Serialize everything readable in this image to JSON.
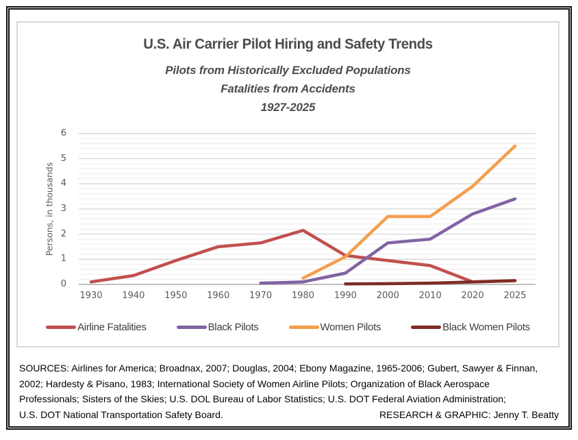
{
  "header": {
    "title": "U.S. Air Carrier Pilot Hiring and Safety Trends",
    "subtitle_line1": "Pilots from Historically Excluded Populations",
    "subtitle_line2": "Fatalities from Accidents",
    "subtitle_line3": "1927-2025"
  },
  "chart_data": {
    "type": "line",
    "title": "U.S. Air Carrier Pilot Hiring and Safety Trends",
    "subtitle": "Pilots from Historically Excluded Populations; Fatalities from Accidents; 1927-2025",
    "categories": [
      "1930",
      "1940",
      "1950",
      "1960",
      "1970",
      "1980",
      "1990",
      "2000",
      "2010",
      "2020",
      "2025"
    ],
    "series": [
      {
        "name": "Airline Fatalities",
        "color": "#C0504D",
        "values": [
          0.1,
          0.35,
          0.95,
          1.5,
          1.65,
          2.15,
          1.15,
          0.95,
          0.75,
          0.1,
          0.15
        ]
      },
      {
        "name": "Black Pilots",
        "color": "#8064A2",
        "values": [
          null,
          null,
          null,
          null,
          0.05,
          0.1,
          0.45,
          1.65,
          1.8,
          2.8,
          3.4
        ]
      },
      {
        "name": "Women Pilots",
        "color": "#F49E4C",
        "values": [
          null,
          null,
          null,
          null,
          null,
          0.25,
          1.1,
          2.7,
          2.7,
          3.9,
          5.5
        ]
      },
      {
        "name": "Black Women Pilots",
        "color": "#7E2D26",
        "values": [
          null,
          null,
          null,
          null,
          null,
          null,
          0.02,
          0.03,
          0.05,
          0.1,
          0.15
        ]
      }
    ],
    "xlabel": "",
    "ylabel": "Persons, in thousands",
    "ylim": [
      0,
      6
    ],
    "y_ticks": [
      0,
      1,
      2,
      3,
      4,
      5,
      6
    ],
    "minor_grid_step": 0.2,
    "grid": "on",
    "legend_position": "bottom"
  },
  "footer": {
    "sources_lines": [
      "SOURCES: Airlines for America; Broadnax, 2007; Douglas, 2004; Ebony Magazine, 1965-2006; Gubert, Sawyer & Finnan,",
      "2002; Hardesty & Pisano, 1983; International Society of Women Airline Pilots; Organization of Black Aerospace",
      "Professionals; Sisters of the Skies; U.S. DOL Bureau of Labor Statistics; U.S. DOT Federal Aviation Administration;"
    ],
    "last_line": "U.S. DOT National Transportation Safety Board.",
    "credit": "RESEARCH & GRAPHIC: Jenny T. Beatty"
  }
}
